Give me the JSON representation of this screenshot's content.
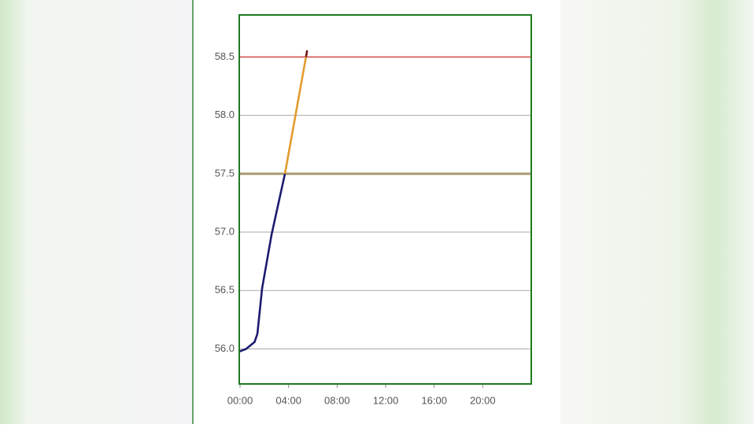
{
  "chart_data": {
    "type": "line",
    "x": [
      0,
      0.5,
      1.2,
      1.43,
      1.82,
      2.6,
      3.7,
      4.55,
      5.52
    ],
    "series": [
      {
        "values": [
          55.98,
          56.0,
          56.06,
          56.13,
          56.52,
          56.98,
          57.5,
          57.99,
          58.55
        ]
      }
    ],
    "color_bands": [
      "#1c1c70",
      "#e39b2e",
      "#701515"
    ],
    "thresholds": [
      {
        "value": 57.5,
        "color": "#a89a70"
      },
      {
        "value": 58.5,
        "color": "#d9534f"
      }
    ],
    "xlim": [
      0,
      24
    ],
    "xticks": [
      {
        "value": 0,
        "label": "00:00"
      },
      {
        "value": 4,
        "label": "04:00"
      },
      {
        "value": 8,
        "label": "08:00"
      },
      {
        "value": 12,
        "label": "12:00"
      },
      {
        "value": 16,
        "label": "16:00"
      },
      {
        "value": 20,
        "label": "20:00"
      }
    ],
    "ylim": [
      55.7,
      58.86
    ],
    "yticks": [
      {
        "value": 56,
        "label": "56.0"
      },
      56.5,
      {
        "value": 57,
        "label": "57.0"
      },
      57.5,
      {
        "value": 58,
        "label": "58.0"
      },
      58.5
    ],
    "grid": true
  }
}
